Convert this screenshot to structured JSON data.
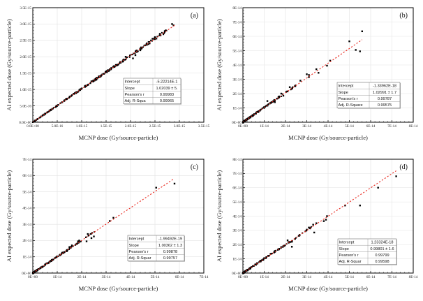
{
  "figure": {
    "colors": {
      "points": "#000000",
      "fit_line": "#e8281e",
      "grid": "#e3e3e3",
      "axis": "#000000"
    }
  },
  "chart_data": [
    {
      "type": "scatter",
      "panel_label": "(a)",
      "xlabel": "MCNP dose (Gy/source-particle)",
      "ylabel": "AI expected dose (Gy/source-particle)",
      "xlim": [
        0,
        3.5e-15
      ],
      "ylim": [
        0,
        3.5e-15
      ],
      "xticks": [
        0,
        5e-16,
        1e-15,
        1.5e-15,
        2e-15,
        2.5e-15,
        3e-15,
        3.5e-15
      ],
      "xtick_labels": [
        "0.0E+00",
        "5.0E-16",
        "1.0E-15",
        "1.5E-15",
        "2.0E-15",
        "2.5E-15",
        "3.0E-15",
        "3.5E-15"
      ],
      "yticks": [
        0,
        5e-16,
        1e-15,
        1.5e-15,
        2e-15,
        2.5e-15,
        3e-15,
        3.5e-15
      ],
      "ytick_labels": [
        "0.0E+00",
        "5.0E-16",
        "1.0E-15",
        "1.5E-15",
        "2.0E-15",
        "2.5E-15",
        "3.0E-15",
        "3.5E-15"
      ],
      "grid": true,
      "fit": {
        "slope": 1.02039,
        "intercept": 0,
        "x_range": [
          0,
          2.9e-15
        ]
      },
      "stats": [
        {
          "label": "Intercept",
          "value": "-5.22214E-1"
        },
        {
          "label": "Slope",
          "value": "1.02039 ± 5."
        },
        {
          "label": "Pearson's r",
          "value": "0.99983"
        },
        {
          "label": "Adj. R-Squa",
          "value": "0.99965"
        }
      ],
      "points_description": "dense cluster along y≈1.02x from 0 to ~2.9E-15",
      "points": [
        [
          2.85e-15,
          3e-15
        ],
        [
          2.88e-15,
          2.96e-15
        ],
        [
          2.7e-15,
          2.78e-15
        ],
        [
          2.6e-15,
          2.7e-15
        ],
        [
          2.5e-15,
          2.6e-15
        ],
        [
          2.45e-15,
          2.55e-15
        ],
        [
          2.3e-15,
          2.35e-15
        ],
        [
          2.2e-15,
          2.2e-15
        ],
        [
          2.1e-15,
          2.05e-15
        ],
        [
          2.05e-15,
          1.95e-15
        ],
        [
          1.9e-15,
          2e-15
        ],
        [
          1.85e-15,
          1.9e-15
        ],
        [
          1.8e-15,
          1.82e-15
        ],
        [
          1.7e-15,
          1.75e-15
        ],
        [
          1.6e-15,
          1.62e-15
        ],
        [
          1.5e-15,
          1.55e-15
        ],
        [
          1.45e-15,
          1.48e-15
        ],
        [
          1.35e-15,
          1.4e-15
        ],
        [
          1.3e-15,
          1.3e-15
        ],
        [
          1.2e-15,
          1.25e-15
        ],
        [
          1.1e-15,
          1.12e-15
        ],
        [
          1e-15,
          1.03e-15
        ],
        [
          9e-16,
          9.2e-16
        ],
        [
          8e-16,
          8.2e-16
        ],
        [
          7e-16,
          7.2e-16
        ],
        [
          6e-16,
          6.1e-16
        ],
        [
          5e-16,
          5.1e-16
        ],
        [
          4e-16,
          4.1e-16
        ],
        [
          3e-16,
          3.05e-16
        ],
        [
          2e-16,
          2.05e-16
        ],
        [
          1e-16,
          1e-16
        ],
        [
          5e-17,
          5e-17
        ]
      ]
    },
    {
      "type": "scatter",
      "panel_label": "(b)",
      "xlabel": "MCNP dose (Gy/source-particle)",
      "ylabel": "AI expected dose (Gy/source-particle)",
      "xlim": [
        0,
        8e-14
      ],
      "ylim": [
        0,
        8e-14
      ],
      "xticks": [
        0,
        1e-14,
        2e-14,
        3e-14,
        4e-14,
        5e-14,
        6e-14,
        7e-14,
        8e-14
      ],
      "xtick_labels": [
        "0E+00",
        "1E-14",
        "2E-14",
        "3E-14",
        "4E-14",
        "5E-14",
        "6E-14",
        "7E-14",
        "8E-14"
      ],
      "yticks": [
        0,
        1e-14,
        2e-14,
        3e-14,
        4e-14,
        5e-14,
        6e-14,
        7e-14,
        8e-14
      ],
      "ytick_labels": [
        "0E+00",
        "1E-14",
        "2E-14",
        "3E-14",
        "4E-14",
        "5E-14",
        "6E-14",
        "7E-14",
        "8E-14"
      ],
      "grid": true,
      "fit": {
        "slope": 1.02991,
        "intercept": 0,
        "x_range": [
          0,
          5.6e-14
        ]
      },
      "stats": [
        {
          "label": "Intercept",
          "value": "-1.33962E-18"
        },
        {
          "label": "Slope",
          "value": "1.02991 ± 1.7"
        },
        {
          "label": "Pearson's r",
          "value": "0.99787"
        },
        {
          "label": "Adj. R-Square",
          "value": "0.99575"
        }
      ],
      "points": [
        [
          5.6e-14,
          6.35e-14
        ],
        [
          5e-14,
          5.65e-14
        ],
        [
          5.3e-14,
          5.05e-14
        ],
        [
          5.5e-14,
          4.95e-14
        ],
        [
          4.1e-14,
          4.3e-14
        ],
        [
          3.95e-14,
          3.95e-14
        ],
        [
          3.45e-14,
          3.7e-14
        ],
        [
          3.55e-14,
          3.45e-14
        ],
        [
          3e-14,
          3.35e-14
        ],
        [
          3.1e-14,
          3.3e-14
        ],
        [
          3.1e-14,
          3.15e-14
        ],
        [
          2.7e-14,
          2.9e-14
        ],
        [
          2.2e-14,
          2.45e-14
        ],
        [
          2.3e-14,
          2.35e-14
        ],
        [
          2.1e-14,
          2.15e-14
        ],
        [
          1.9e-14,
          1.85e-14
        ],
        [
          1.8e-14,
          2e-14
        ],
        [
          1.7e-14,
          1.8e-14
        ],
        [
          1.6e-14,
          1.65e-14
        ],
        [
          1.15e-14,
          1.48e-14
        ],
        [
          1.5e-14,
          1.4e-14
        ],
        [
          1.3e-14,
          1.35e-14
        ],
        [
          1.1e-14,
          1.15e-14
        ],
        [
          1e-14,
          1.05e-14
        ],
        [
          8e-15,
          8.3e-15
        ],
        [
          6e-15,
          6.2e-15
        ],
        [
          5e-15,
          5.2e-15
        ],
        [
          4e-15,
          4.1e-15
        ],
        [
          3e-15,
          3.1e-15
        ],
        [
          2e-15,
          2e-15
        ],
        [
          1e-15,
          1e-15
        ],
        [
          5e-16,
          5e-16
        ]
      ]
    },
    {
      "type": "scatter",
      "panel_label": "(c)",
      "xlabel": "MCNP dose (Gy/source-particle)",
      "ylabel": "AI expected dose (Gy/source-particle)",
      "xlim": [
        0,
        7e-14
      ],
      "ylim": [
        0,
        7e-14
      ],
      "xticks": [
        0,
        1e-14,
        2e-14,
        3e-14,
        4e-14,
        5e-14,
        6e-14,
        7e-14
      ],
      "xtick_labels": [
        "0E+00",
        "1E-14",
        "2E-14",
        "3E-14",
        "4E-14",
        "5E-14",
        "6E-14",
        "7E-14"
      ],
      "yticks": [
        0,
        1e-14,
        2e-14,
        3e-14,
        4e-14,
        5e-14,
        6e-14,
        7e-14
      ],
      "ytick_labels": [
        "0E+00",
        "1E-14",
        "2E-14",
        "3E-14",
        "4E-14",
        "5E-14",
        "6E-14",
        "7E-14"
      ],
      "grid": true,
      "fit": {
        "slope": 1.00362,
        "intercept": 0,
        "x_range": [
          0,
          5.75e-14
        ]
      },
      "stats": [
        {
          "label": "Intercept",
          "value": "-1.99492E-19"
        },
        {
          "label": "Slope",
          "value": "1.00362 ± 1.3"
        },
        {
          "label": "Pearson's r",
          "value": "0.99878"
        },
        {
          "label": "Adj. R-Squar",
          "value": "0.99757"
        }
      ],
      "points": [
        [
          5.8e-14,
          5.5e-14
        ],
        [
          5.05e-14,
          5.25e-14
        ],
        [
          3.3e-14,
          3.4e-14
        ],
        [
          3.15e-14,
          3.2e-14
        ],
        [
          2.5e-14,
          2.25e-14
        ],
        [
          2.4e-14,
          2.15e-14
        ],
        [
          2.25e-14,
          2.4e-14
        ],
        [
          2.2e-14,
          1.95e-14
        ],
        [
          1.9e-14,
          2e-14
        ],
        [
          1.85e-14,
          1.95e-14
        ],
        [
          1.8e-14,
          1.8e-14
        ],
        [
          1.6e-14,
          1.7e-14
        ],
        [
          1.5e-14,
          1.6e-14
        ],
        [
          1.4e-14,
          1.35e-14
        ],
        [
          1.3e-14,
          1.3e-14
        ],
        [
          1.2e-14,
          1.25e-14
        ],
        [
          1.1e-14,
          1.1e-14
        ],
        [
          1e-14,
          1.02e-14
        ],
        [
          9e-15,
          9.2e-15
        ],
        [
          8e-15,
          8.2e-15
        ],
        [
          7e-15,
          7.1e-15
        ],
        [
          6e-15,
          6e-15
        ],
        [
          5e-15,
          5e-15
        ],
        [
          4e-15,
          4e-15
        ],
        [
          3e-15,
          3e-15
        ],
        [
          2e-15,
          2e-15
        ],
        [
          1e-15,
          1e-15
        ],
        [
          5e-16,
          5e-16
        ]
      ]
    },
    {
      "type": "scatter",
      "panel_label": "(d)",
      "xlabel": "MCNP dose (Gy/source-particle)",
      "ylabel": "AI expected dose (Gy/source-particle)",
      "xlim": [
        0,
        8e-14
      ],
      "ylim": [
        0,
        8e-14
      ],
      "xticks": [
        0,
        1e-14,
        2e-14,
        3e-14,
        4e-14,
        5e-14,
        6e-14,
        7e-14,
        8e-14
      ],
      "xtick_labels": [
        "0E+00",
        "1E-14",
        "2E-14",
        "3E-14",
        "4E-14",
        "5E-14",
        "6E-14",
        "7E-14",
        "8E-14"
      ],
      "yticks": [
        0,
        1e-14,
        2e-14,
        3e-14,
        4e-14,
        5e-14,
        6e-14,
        7e-14,
        8e-14
      ],
      "ytick_labels": [
        "0E+00",
        "1E-14",
        "2E-14",
        "3E-14",
        "4E-14",
        "5E-14",
        "6E-14",
        "7E-14",
        "8E-14"
      ],
      "grid": true,
      "fit": {
        "slope": 0.99801,
        "intercept": 0,
        "x_range": [
          0,
          7.2e-14
        ]
      },
      "stats": [
        {
          "label": "Intercept",
          "value": "1.23324E-18"
        },
        {
          "label": "Slope",
          "value": "0.99801 ± 1.6"
        },
        {
          "label": "Pearson's r",
          "value": "0.99799"
        },
        {
          "label": "Adj. R-Squar",
          "value": "0.99598"
        }
      ],
      "points": [
        [
          7.2e-14,
          6.8e-14
        ],
        [
          6.35e-14,
          6e-14
        ],
        [
          5.5e-14,
          4.75e-14
        ],
        [
          4.8e-14,
          4.75e-14
        ],
        [
          3.95e-14,
          4e-14
        ],
        [
          3.9e-14,
          3.75e-14
        ],
        [
          3.8e-14,
          3.65e-14
        ],
        [
          3.45e-14,
          3.5e-14
        ],
        [
          3.3e-14,
          3.4e-14
        ],
        [
          3.35e-14,
          2.85e-14
        ],
        [
          3.1e-14,
          3.2e-14
        ],
        [
          3e-14,
          3.05e-14
        ],
        [
          2.45e-14,
          2.4e-14
        ],
        [
          2.3e-14,
          2.2e-14
        ],
        [
          2.3e-14,
          1.85e-14
        ],
        [
          2.1e-14,
          2.3e-14
        ],
        [
          1.9e-14,
          1.9e-14
        ],
        [
          1.7e-14,
          1.7e-14
        ],
        [
          1.5e-14,
          1.55e-14
        ],
        [
          1.3e-14,
          1.35e-14
        ],
        [
          1.2e-14,
          1.2e-14
        ],
        [
          1.1e-14,
          1.12e-14
        ],
        [
          1e-14,
          1.05e-14
        ],
        [
          9e-15,
          9.1e-15
        ],
        [
          8e-15,
          8.1e-15
        ],
        [
          6e-15,
          6.1e-15
        ],
        [
          5e-15,
          5e-15
        ],
        [
          4e-15,
          4.1e-15
        ],
        [
          3e-15,
          3e-15
        ],
        [
          2e-15,
          2e-15
        ],
        [
          1e-15,
          1e-15
        ],
        [
          5e-16,
          5e-16
        ]
      ]
    }
  ]
}
